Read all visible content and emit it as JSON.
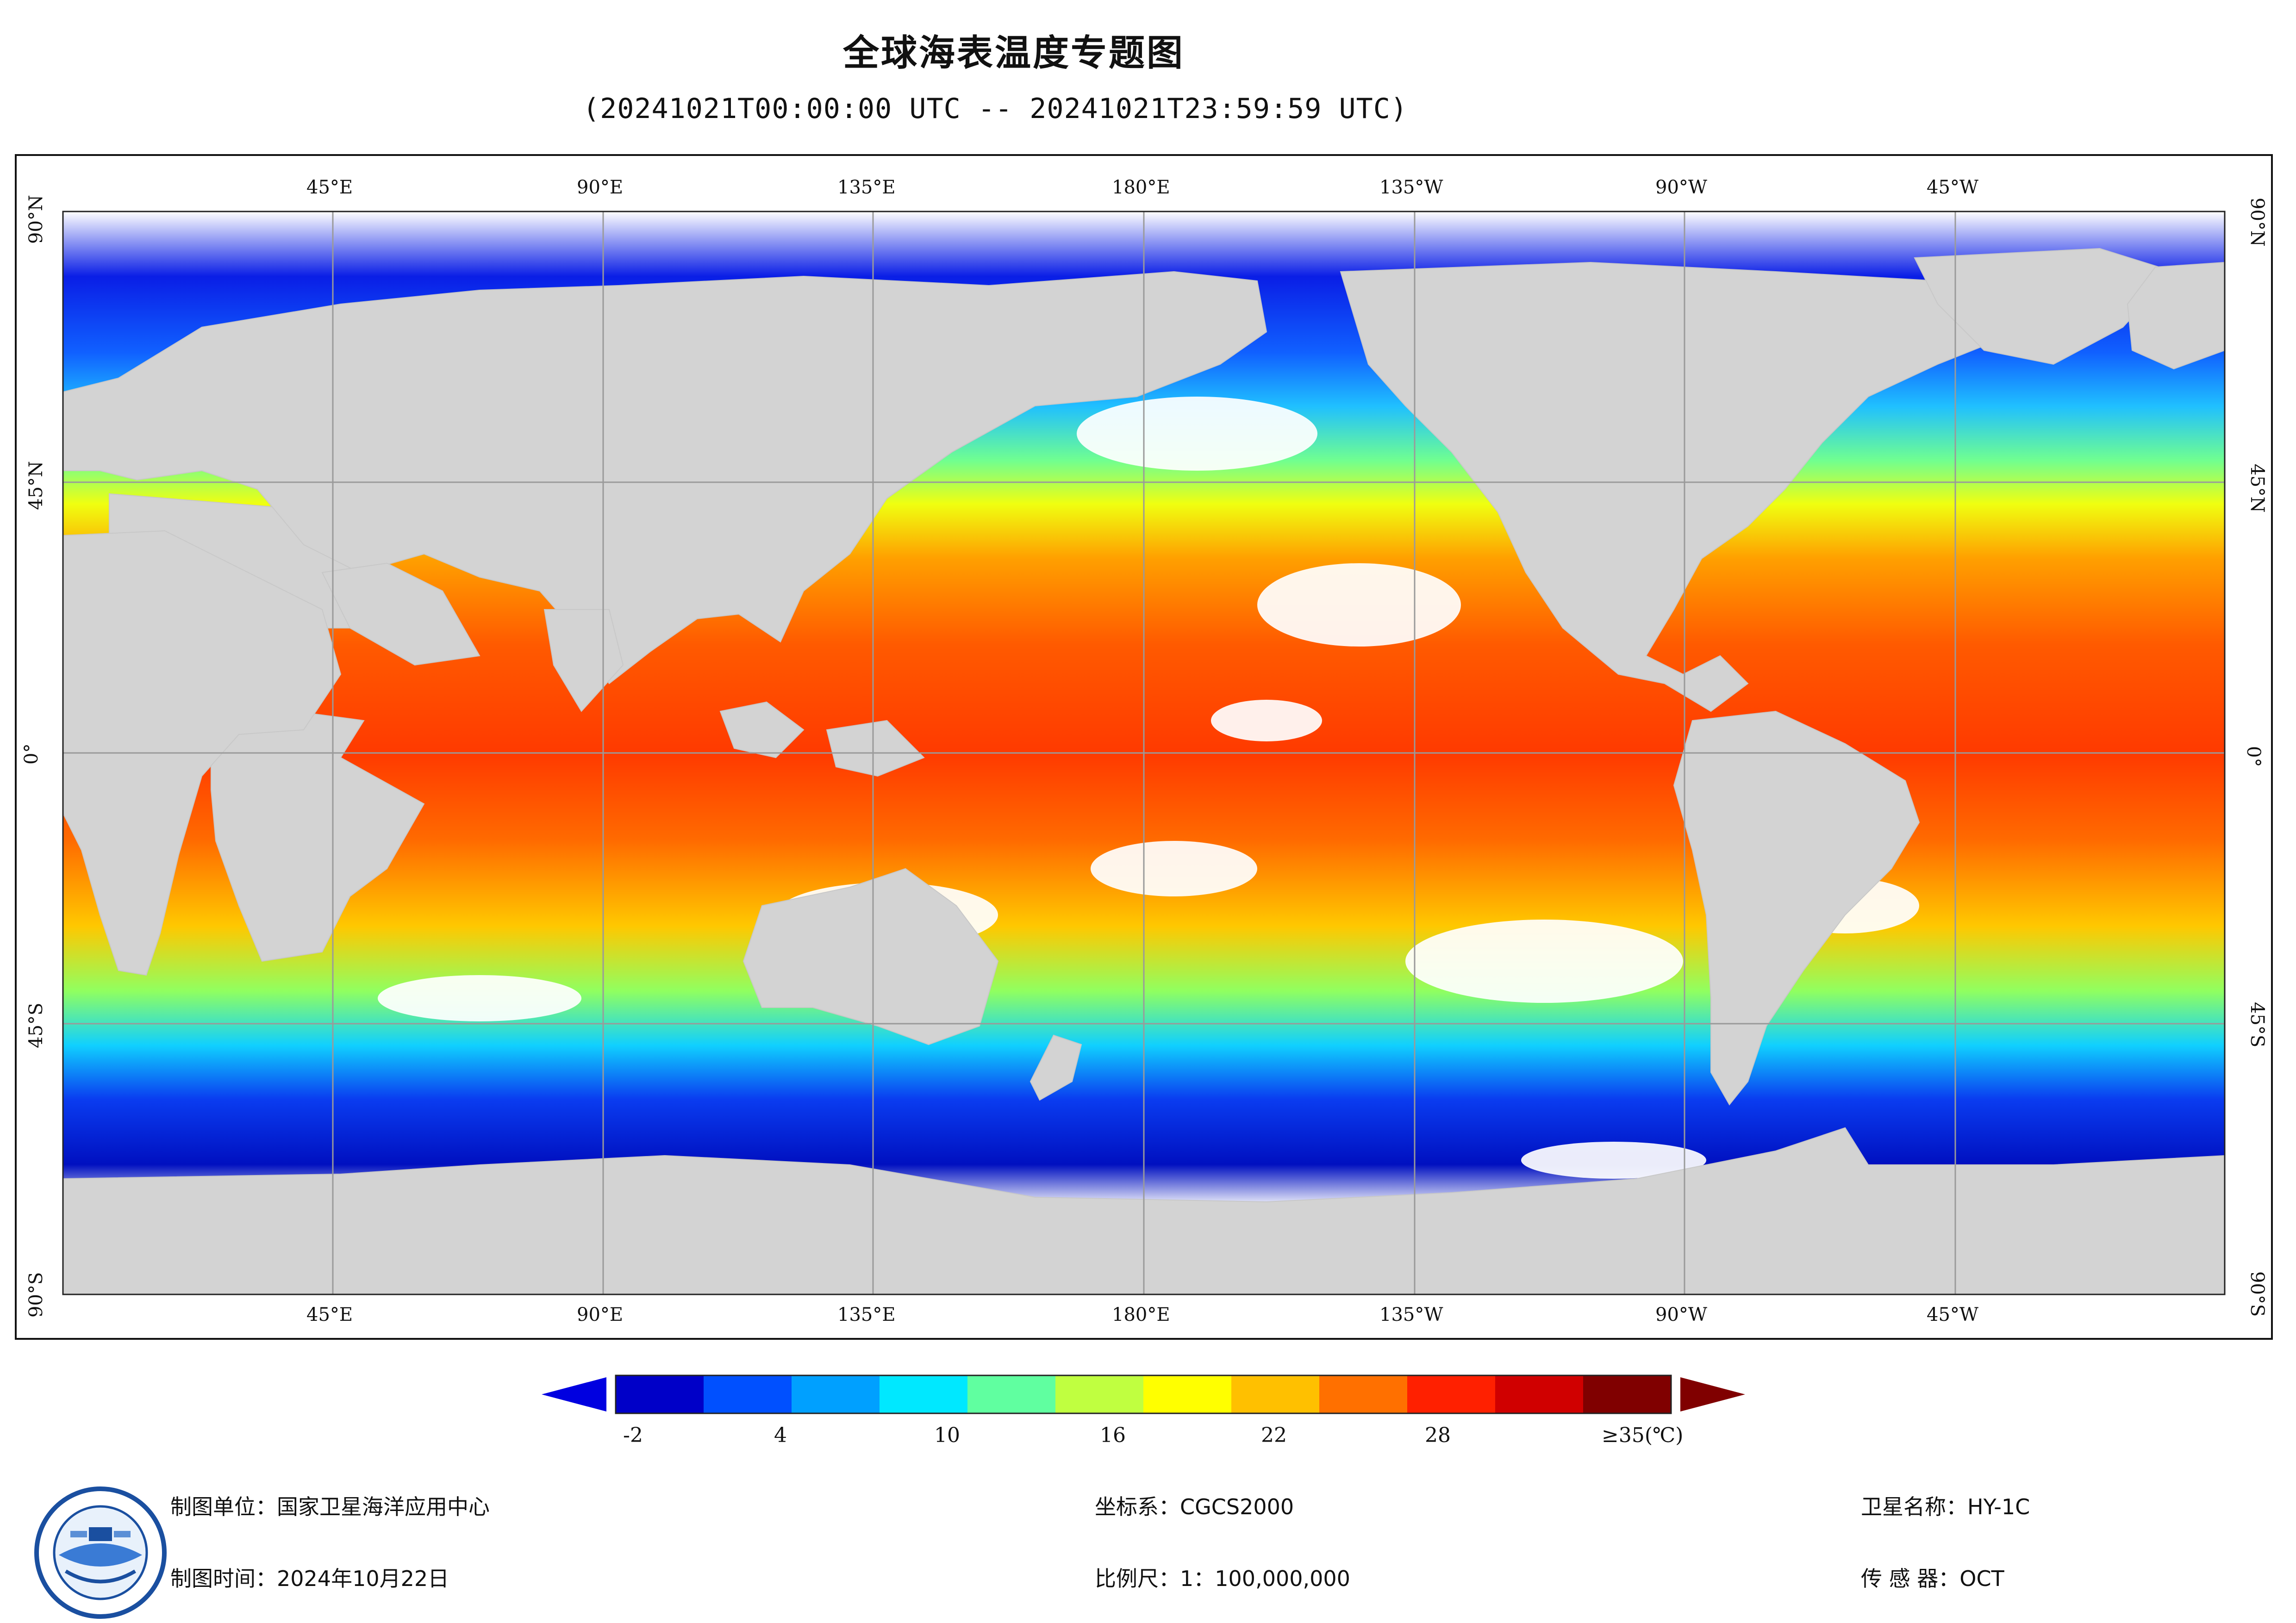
{
  "header": {
    "title": "全球海表温度专题图",
    "subtitle": "(20241021T00:00:00 UTC -- 20241021T23:59:59 UTC)"
  },
  "map": {
    "projection": "equirectangular",
    "ocean_color_scale": "jet-like",
    "land_color": "#d3d3d3",
    "no_data_color": "#ffffff",
    "grid": true,
    "top_labels": [
      "45°E",
      "90°E",
      "135°E",
      "180°E",
      "135°W",
      "90°W",
      "45°W"
    ],
    "bottom_labels": [
      "45°E",
      "90°E",
      "135°E",
      "180°E",
      "135°W",
      "90°W",
      "45°W"
    ],
    "left_labels": [
      "90°N",
      "45°N",
      "0°",
      "45°S",
      "90°S"
    ],
    "right_labels": [
      "90°N",
      "45°N",
      "0°",
      "45°S",
      "90°S"
    ]
  },
  "colorbar": {
    "labels": [
      "-2",
      "4",
      "10",
      "16",
      "22",
      "28",
      "≥35(℃)"
    ],
    "colors": [
      "#0000c8",
      "#0050ff",
      "#00a0ff",
      "#00e8ff",
      "#60ffa0",
      "#c0ff40",
      "#ffff00",
      "#ffc000",
      "#ff7000",
      "#ff2000",
      "#d00000",
      "#800000"
    ],
    "min_arrow_color": "#0000e0",
    "max_arrow_color": "#800000"
  },
  "footer": {
    "agency": "制图单位：国家卫星海洋应用中心",
    "date": "制图时间：2024年10月22日",
    "coord_system": "坐标系：CGCS2000",
    "scale": "比例尺：1：100,000,000",
    "satellite": "卫星名称：HY-1C",
    "sensor": "传 感 器：OCT",
    "logo_icon": "nsoas-logo-icon"
  }
}
